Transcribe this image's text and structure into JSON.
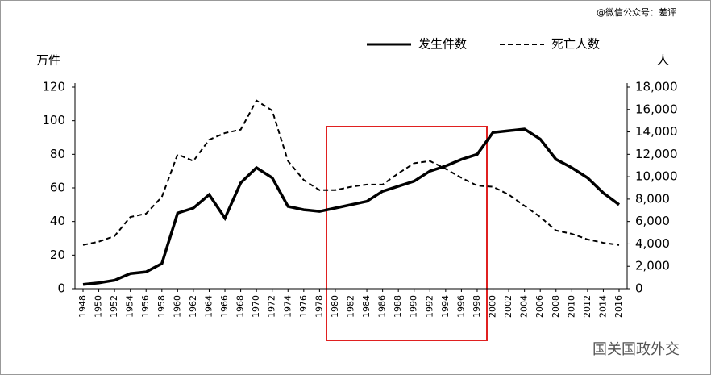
{
  "chart_data": {
    "type": "line",
    "watermark": "@微信公众号：差评",
    "source": "国关国政外交",
    "y_label": "万件",
    "y2_label": "人",
    "x": [
      1948,
      1950,
      1952,
      1954,
      1956,
      1958,
      1960,
      1962,
      1964,
      1966,
      1968,
      1970,
      1972,
      1974,
      1976,
      1978,
      1980,
      1982,
      1984,
      1986,
      1988,
      1990,
      1992,
      1994,
      1996,
      1998,
      2000,
      2002,
      2004,
      2006,
      2008,
      2010,
      2012,
      2014,
      2016
    ],
    "xlim": [
      1948,
      2016
    ],
    "xticks": [
      1948,
      1950,
      1952,
      1954,
      1956,
      1958,
      1960,
      1962,
      1964,
      1966,
      1968,
      1970,
      1972,
      1974,
      1976,
      1978,
      1980,
      1982,
      1984,
      1986,
      1988,
      1990,
      1992,
      1994,
      1996,
      1998,
      2000,
      2002,
      2004,
      2006,
      2008,
      2010,
      2012,
      2014,
      2016
    ],
    "ylim": [
      0,
      120
    ],
    "yticks": [
      0,
      20,
      40,
      60,
      80,
      100,
      120
    ],
    "y2lim": [
      0,
      18000
    ],
    "y2ticks": [
      {
        "value": 0,
        "label": "0"
      },
      {
        "value": 2000,
        "label": "2,000"
      },
      {
        "value": 4000,
        "label": "4,000"
      },
      {
        "value": 6000,
        "label": "6,000"
      },
      {
        "value": 8000,
        "label": "8,000"
      },
      {
        "value": 10000,
        "label": "10,000"
      },
      {
        "value": 12000,
        "label": "12,000"
      },
      {
        "value": 14000,
        "label": "14,000"
      },
      {
        "value": 16000,
        "label": "16,000"
      },
      {
        "value": 18000,
        "label": "18,000"
      }
    ],
    "series": [
      {
        "name": "发生件数",
        "color": "#000000",
        "dash": false,
        "values": [
          2.5,
          3.5,
          5,
          9,
          10,
          15,
          45,
          48,
          56,
          42,
          63,
          72,
          66,
          49,
          47,
          46,
          48,
          50,
          52,
          58,
          61,
          64,
          70,
          73,
          77,
          80,
          93,
          94,
          95,
          89,
          77,
          72,
          66,
          57,
          50
        ]
      },
      {
        "name": "死亡人数",
        "color": "#000000",
        "dash": true,
        "axis": "y2",
        "values": [
          3900,
          4200,
          4700,
          6400,
          6700,
          8200,
          12000,
          11400,
          13300,
          13900,
          14200,
          16800,
          15900,
          11400,
          9700,
          8800,
          8800,
          9100,
          9300,
          9300,
          10300,
          11200,
          11400,
          10700,
          9900,
          9200,
          9100,
          8400,
          7400,
          6400,
          5200,
          4900,
          4400,
          4100,
          3900
        ]
      }
    ]
  }
}
